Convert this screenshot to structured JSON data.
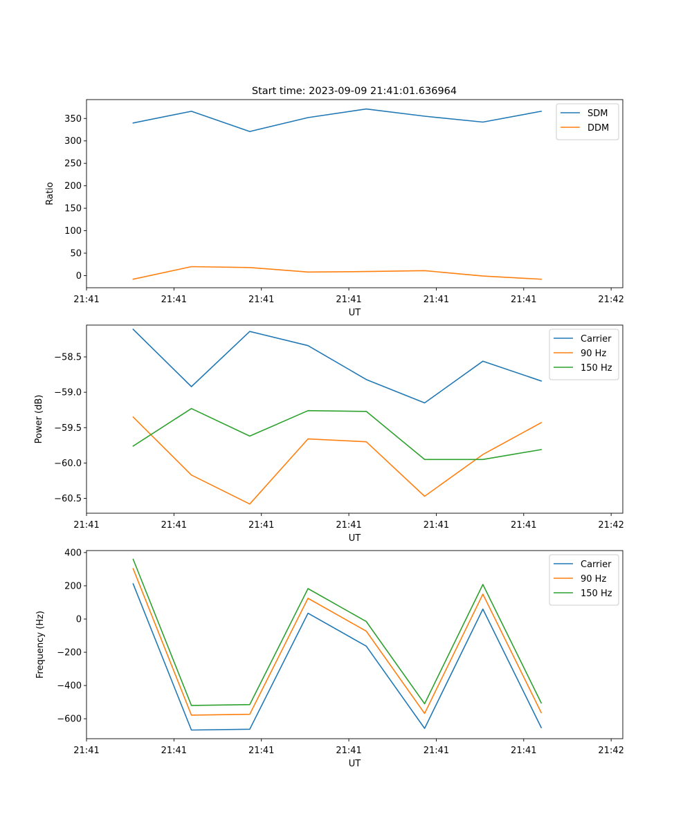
{
  "figure": {
    "suptitle": "Start time: 2023-09-09 21:41:01.636964"
  },
  "colors": {
    "c0": "#1f77b4",
    "c1": "#ff7f0e",
    "c2": "#2ca02c"
  },
  "chart_data": [
    {
      "type": "line",
      "title": "Start time: 2023-09-09 21:41:01.636964",
      "xlabel": "UT",
      "ylabel": "Ratio",
      "x": [
        1,
        2,
        3,
        4,
        5,
        6,
        7,
        8
      ],
      "xlim": [
        0.2,
        9.4
      ],
      "xticks": [
        0.2,
        1.7,
        3.2,
        4.7,
        6.2,
        7.7,
        9.2
      ],
      "xtick_labels": [
        "21:41",
        "21:41",
        "21:41",
        "21:41",
        "21:41",
        "21:41",
        "21:42"
      ],
      "ylim": [
        -27,
        392
      ],
      "yticks": [
        0,
        50,
        100,
        150,
        200,
        250,
        300,
        350
      ],
      "ytick_labels": [
        "0",
        "50",
        "100",
        "150",
        "200",
        "250",
        "300",
        "350"
      ],
      "legend": "top-right",
      "series": [
        {
          "name": "SDM",
          "color": "#1f77b4",
          "values": [
            340,
            366,
            321,
            352,
            371,
            355,
            342,
            366
          ]
        },
        {
          "name": "DDM",
          "color": "#ff7f0e",
          "values": [
            -8,
            20,
            18,
            8,
            9,
            11,
            -1,
            -8
          ]
        }
      ]
    },
    {
      "type": "line",
      "title": "",
      "xlabel": "UT",
      "ylabel": "Power (dB)",
      "x": [
        1,
        2,
        3,
        4,
        5,
        6,
        7,
        8
      ],
      "xlim": [
        0.2,
        9.4
      ],
      "xticks": [
        0.2,
        1.7,
        3.2,
        4.7,
        6.2,
        7.7,
        9.2
      ],
      "xtick_labels": [
        "21:41",
        "21:41",
        "21:41",
        "21:41",
        "21:41",
        "21:41",
        "21:42"
      ],
      "ylim": [
        -60.71,
        -58.05
      ],
      "yticks": [
        -60.5,
        -60.0,
        -59.5,
        -59.0,
        -58.5
      ],
      "ytick_labels": [
        "−60.5",
        "−60.0",
        "−59.5",
        "−59.0",
        "−58.5"
      ],
      "legend": "top-right",
      "series": [
        {
          "name": "Carrier",
          "color": "#1f77b4",
          "values": [
            -58.11,
            -58.92,
            -58.14,
            -58.34,
            -58.82,
            -59.15,
            -58.56,
            -58.84
          ]
        },
        {
          "name": "90 Hz",
          "color": "#ff7f0e",
          "values": [
            -59.35,
            -60.17,
            -60.58,
            -59.66,
            -59.7,
            -60.47,
            -59.88,
            -59.43
          ]
        },
        {
          "name": "150 Hz",
          "color": "#2ca02c",
          "values": [
            -59.76,
            -59.23,
            -59.62,
            -59.26,
            -59.27,
            -59.95,
            -59.95,
            -59.81
          ]
        }
      ]
    },
    {
      "type": "line",
      "title": "",
      "xlabel": "UT",
      "ylabel": "Frequency (Hz)",
      "x": [
        1,
        2,
        3,
        4,
        5,
        6,
        7,
        8
      ],
      "xlim": [
        0.2,
        9.4
      ],
      "xticks": [
        0.2,
        1.7,
        3.2,
        4.7,
        6.2,
        7.7,
        9.2
      ],
      "xtick_labels": [
        "21:41",
        "21:41",
        "21:41",
        "21:41",
        "21:41",
        "21:41",
        "21:42"
      ],
      "ylim": [
        -720,
        412
      ],
      "yticks": [
        -600,
        -400,
        -200,
        0,
        200,
        400
      ],
      "ytick_labels": [
        "−600",
        "−400",
        "−200",
        "0",
        "200",
        "400"
      ],
      "legend": "top-right",
      "series": [
        {
          "name": "Carrier",
          "color": "#1f77b4",
          "values": [
            212,
            -668,
            -663,
            35,
            -163,
            -658,
            60,
            -653
          ]
        },
        {
          "name": "90 Hz",
          "color": "#ff7f0e",
          "values": [
            303,
            -578,
            -573,
            125,
            -73,
            -568,
            150,
            -563
          ]
        },
        {
          "name": "150 Hz",
          "color": "#2ca02c",
          "values": [
            360,
            -520,
            -515,
            183,
            -15,
            -510,
            208,
            -505
          ]
        }
      ]
    }
  ]
}
